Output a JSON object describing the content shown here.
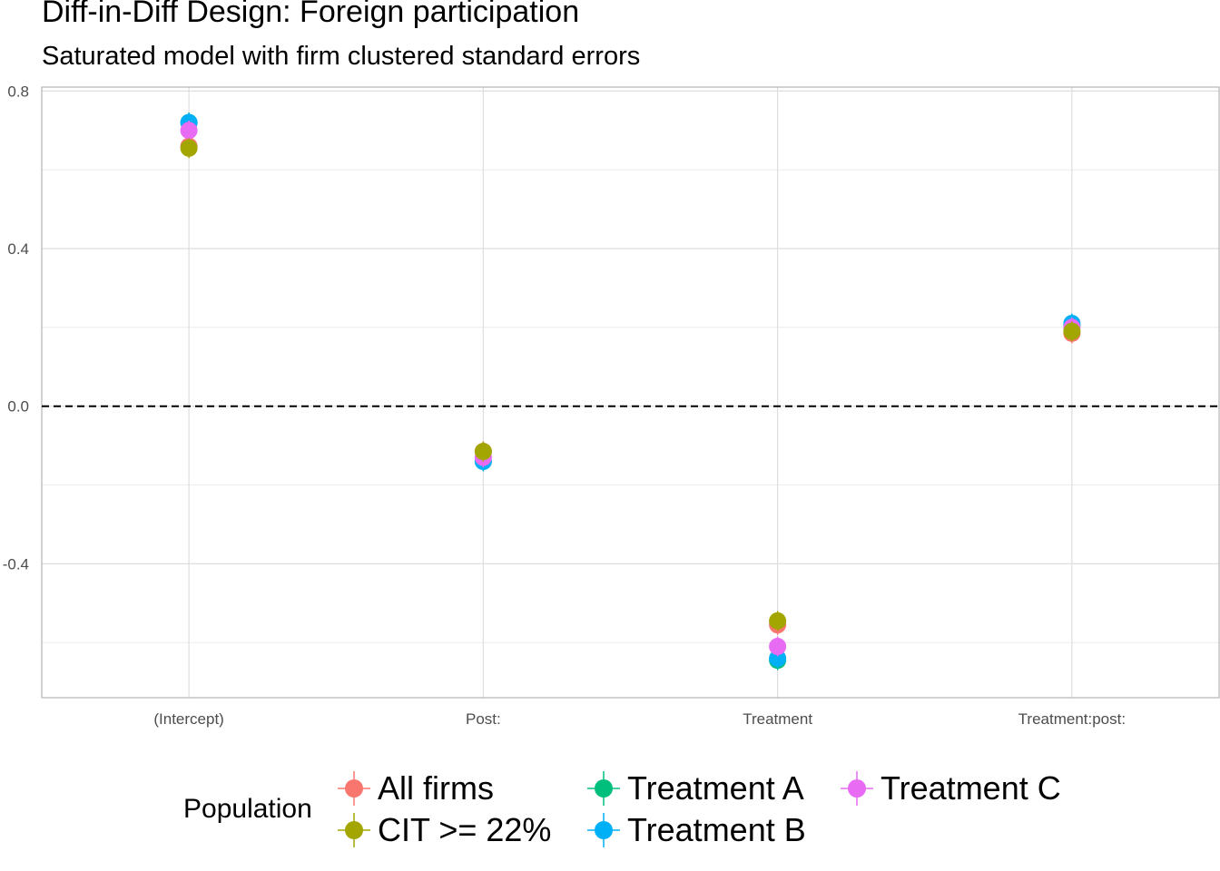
{
  "title": "Diff-in-Diff Design: Foreign participation",
  "subtitle": "Saturated model with firm clustered standard errors",
  "legend": {
    "title": "Population",
    "items": [
      {
        "label": "All firms",
        "color": "#F8766D"
      },
      {
        "label": "CIT >= 22%",
        "color": "#A3A500"
      },
      {
        "label": "Treatment A",
        "color": "#00BF7D"
      },
      {
        "label": "Treatment B",
        "color": "#00B0F6"
      },
      {
        "label": "Treatment C",
        "color": "#E76BF3"
      }
    ]
  },
  "chart_data": {
    "type": "scatter",
    "categories": [
      "(Intercept)",
      "Post:",
      "Treatment",
      "Treatment:post:"
    ],
    "ylim": [
      -0.74,
      0.81
    ],
    "yticks": [
      -0.4,
      0.0,
      0.4,
      0.8
    ],
    "ytick_labels": [
      "-0.4",
      "0.0",
      "0.4",
      "0.8"
    ],
    "reference_line": 0.0,
    "grid": true,
    "legend_position": "bottom",
    "series": [
      {
        "name": "All firms",
        "color": "#F8766D",
        "values": [
          0.66,
          -0.115,
          -0.555,
          0.185
        ]
      },
      {
        "name": "Treatment A",
        "color": "#00BF7D",
        "values": [
          0.72,
          -0.14,
          -0.645,
          0.205
        ]
      },
      {
        "name": "Treatment B",
        "color": "#00B0F6",
        "values": [
          0.72,
          -0.14,
          -0.64,
          0.21
        ]
      },
      {
        "name": "Treatment C",
        "color": "#E76BF3",
        "values": [
          0.7,
          -0.13,
          -0.61,
          0.2
        ]
      },
      {
        "name": "CIT >= 22%",
        "color": "#A3A500",
        "values": [
          0.655,
          -0.115,
          -0.545,
          0.19
        ]
      }
    ]
  }
}
